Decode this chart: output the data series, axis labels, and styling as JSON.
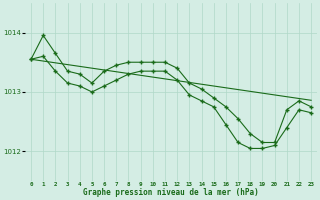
{
  "hours": [
    0,
    1,
    2,
    3,
    4,
    5,
    6,
    7,
    8,
    9,
    10,
    11,
    12,
    13,
    14,
    15,
    16,
    17,
    18,
    19,
    20,
    21,
    22,
    23
  ],
  "line_straight": [
    1013.55,
    1013.52,
    1013.49,
    1013.46,
    1013.43,
    1013.4,
    1013.37,
    1013.34,
    1013.31,
    1013.28,
    1013.25,
    1013.22,
    1013.19,
    1013.16,
    1013.13,
    1013.1,
    1013.07,
    1013.04,
    1013.01,
    1012.98,
    1012.95,
    1012.92,
    1012.89,
    1012.86
  ],
  "line_upper": [
    1013.55,
    1013.95,
    1013.65,
    1013.35,
    1013.3,
    1013.15,
    1013.35,
    1013.45,
    1013.5,
    1013.5,
    1013.5,
    1013.5,
    1013.4,
    1013.15,
    1013.05,
    1012.9,
    1012.75,
    1012.55,
    1012.3,
    1012.15,
    1012.15,
    1012.7,
    1012.85,
    1012.75
  ],
  "line_lower": [
    1013.55,
    1013.6,
    1013.35,
    1013.15,
    1013.1,
    1013.0,
    1013.1,
    1013.2,
    1013.3,
    1013.35,
    1013.35,
    1013.35,
    1013.2,
    1012.95,
    1012.85,
    1012.75,
    1012.45,
    1012.15,
    1012.05,
    1012.05,
    1012.1,
    1012.4,
    1012.7,
    1012.65
  ],
  "line_color": "#1a6b1a",
  "bg_color": "#d4ede4",
  "grid_color": "#b0d8c8",
  "xlabel": "Graphe pression niveau de la mer (hPa)",
  "ylim_min": 1011.5,
  "ylim_max": 1014.5,
  "yticks": [
    1012,
    1013,
    1014
  ]
}
